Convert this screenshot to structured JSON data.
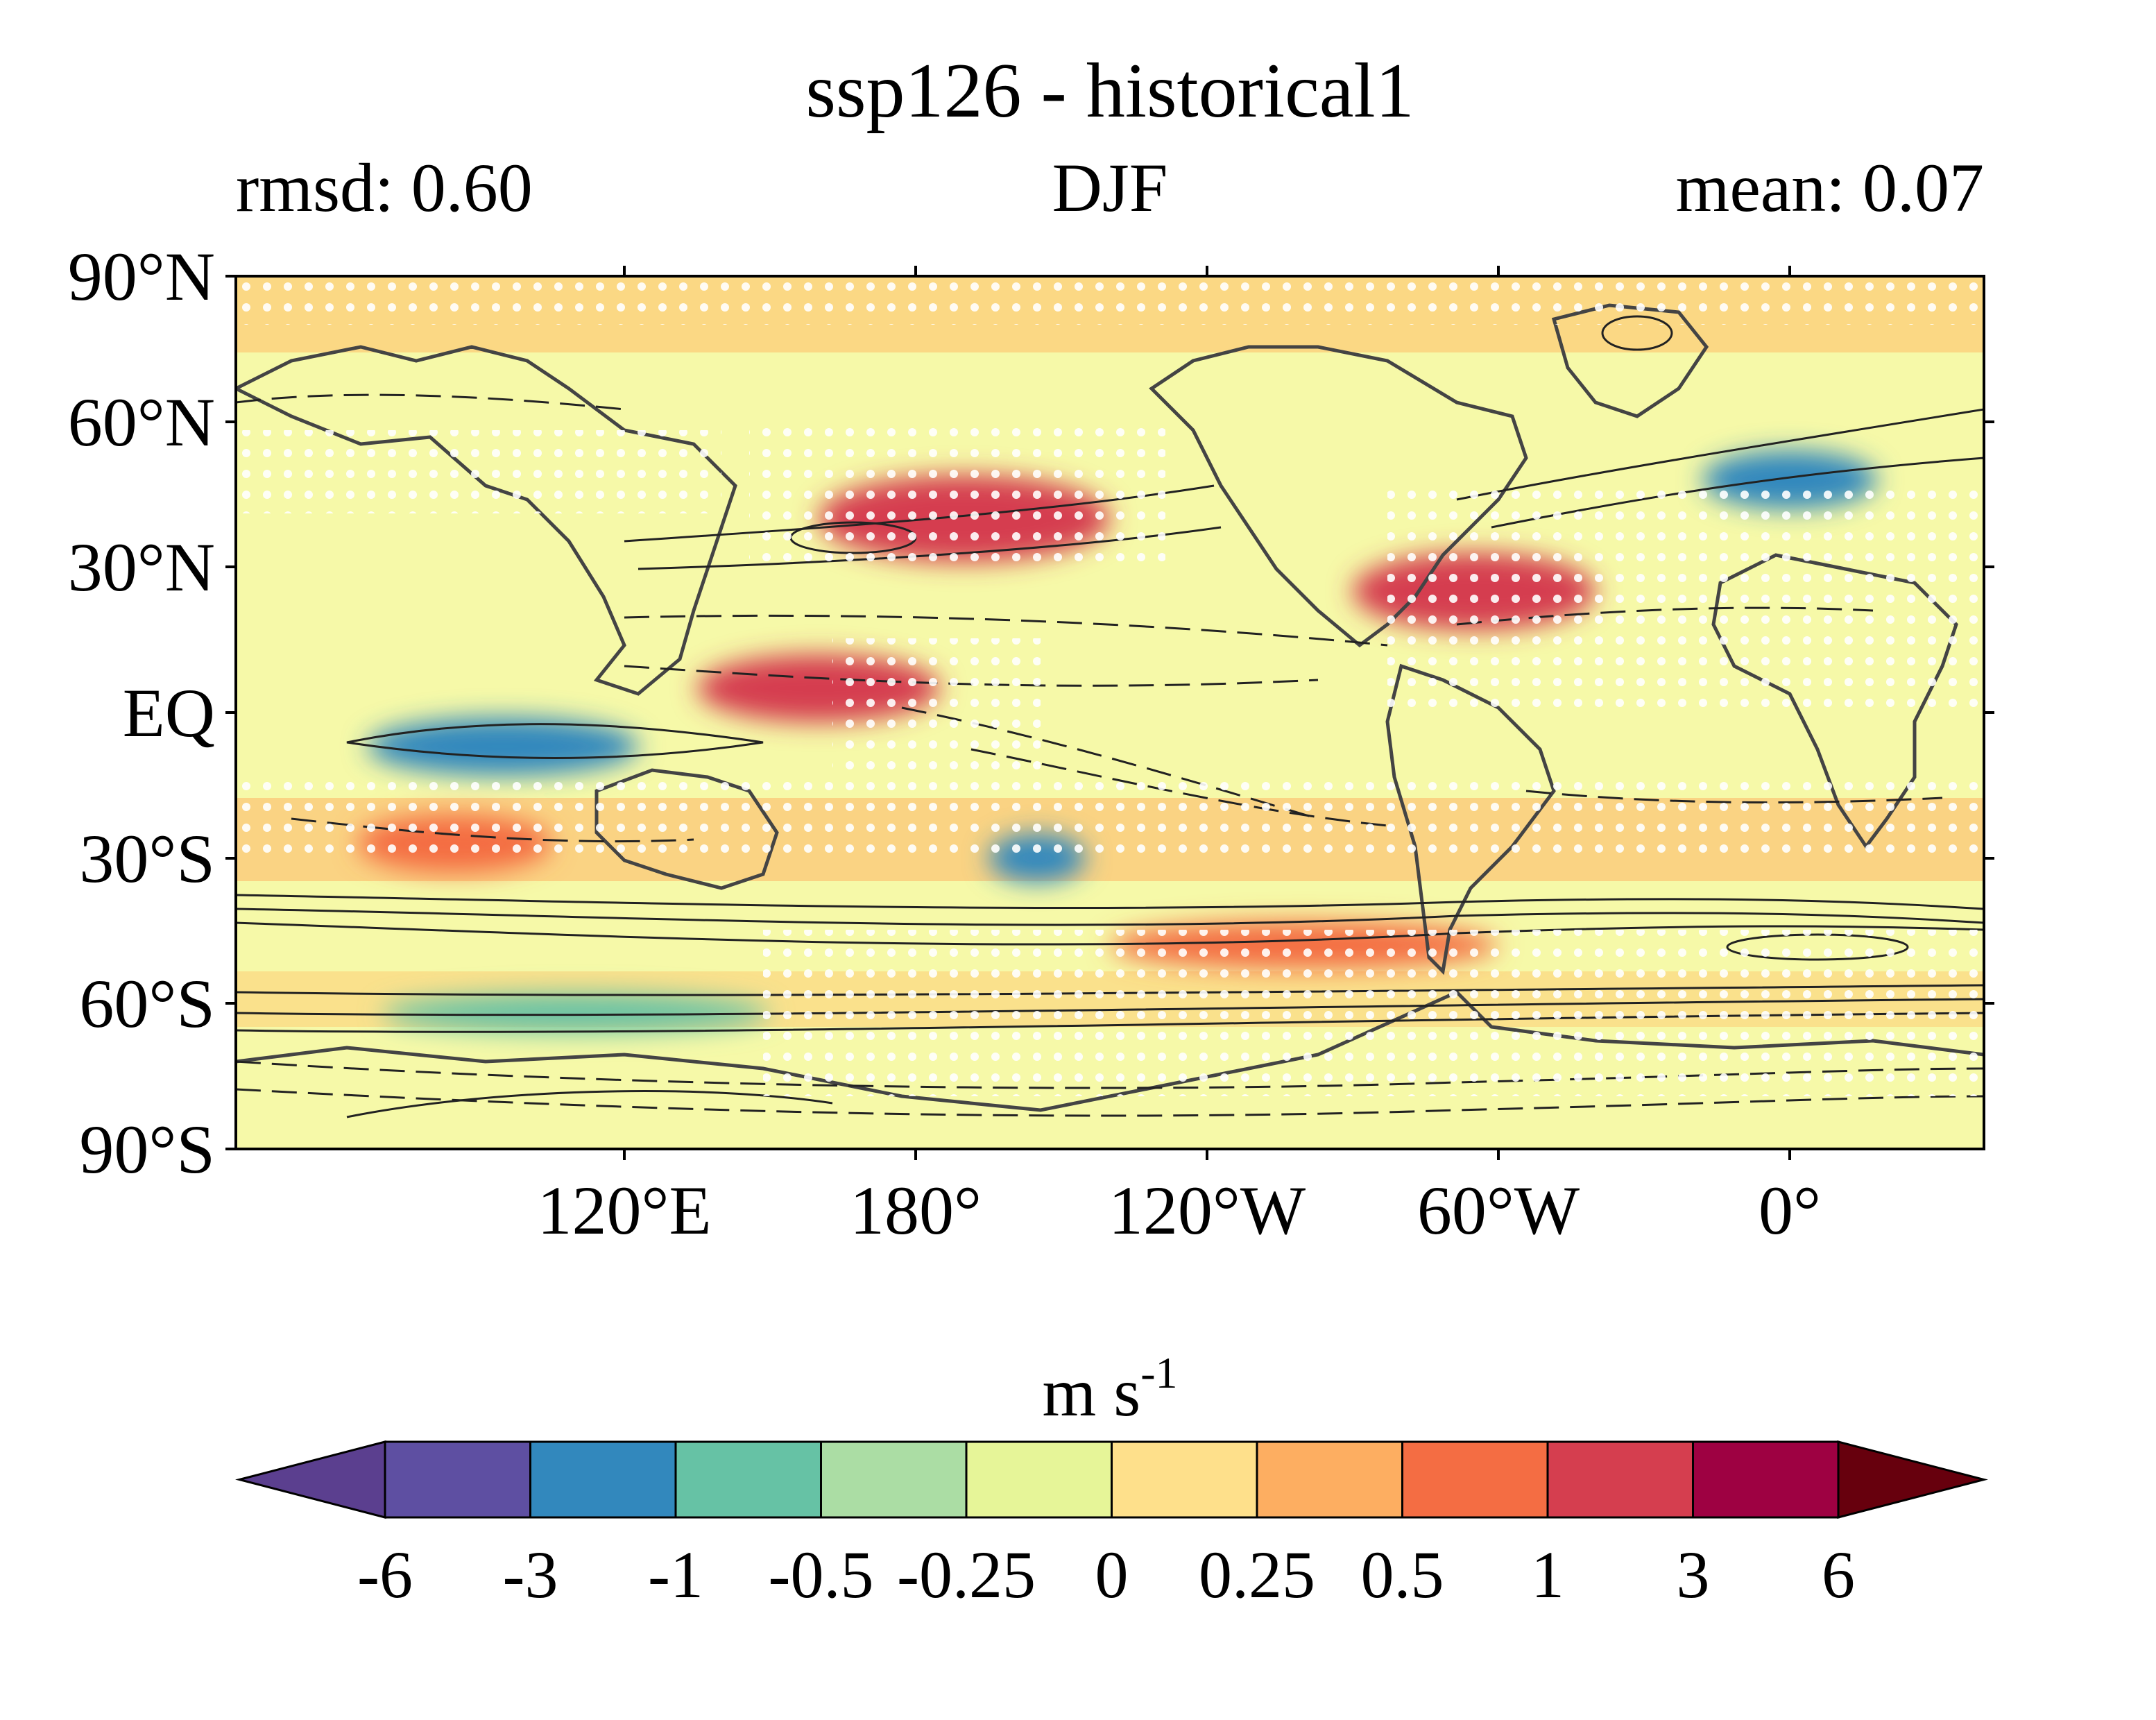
{
  "title": "ssp126 - historical1",
  "subtitle_left": "rmsd: 0.60",
  "subtitle_center": "DJF",
  "subtitle_right": "mean: 0.07",
  "lat_labels": [
    "90°N",
    "60°N",
    "30°N",
    "EQ",
    "30°S",
    "60°S",
    "90°S"
  ],
  "lon_labels": [
    "120°E",
    "180°",
    "120°W",
    "60°W",
    "0°"
  ],
  "colorbar": {
    "units_main": "m s",
    "units_exp": "-1",
    "tick_labels": [
      "-6",
      "-3",
      "-1",
      "-0.5",
      "-0.25",
      "0",
      "0.25",
      "0.5",
      "1",
      "3",
      "6"
    ],
    "colors": [
      "#5b3f8f",
      "#5e4fa2",
      "#3288bd",
      "#66c2a5",
      "#abdda4",
      "#e6f598",
      "#fee08b",
      "#fdae61",
      "#f46d43",
      "#d53e4f",
      "#9e0142",
      "#67000d"
    ]
  },
  "map": {
    "anomaly_blobs": [
      {
        "name": "pacific-jet-positive",
        "lon": 190,
        "lat": 40,
        "rx": 30,
        "ry": 9,
        "level": 1.2
      },
      {
        "name": "west-pacific-equatorial-positive",
        "lon": 160,
        "lat": 5,
        "rx": 25,
        "ry": 7,
        "level": 1.3
      },
      {
        "name": "indian-ocean-equatorial-negative",
        "lon": 95,
        "lat": -7,
        "rx": 28,
        "ry": 6,
        "level": -1.4
      },
      {
        "name": "north-atlantic-negative",
        "lon": 0,
        "lat": 48,
        "rx": 18,
        "ry": 6,
        "level": -1.2
      },
      {
        "name": "south-pacific-negative",
        "lon": 205,
        "lat": -30,
        "rx": 10,
        "ry": 5,
        "level": -1.1
      },
      {
        "name": "subtropical-atlantic-positive",
        "lon": 295,
        "lat": 25,
        "rx": 25,
        "ry": 8,
        "level": 1.1
      },
      {
        "name": "south-indian-positive",
        "lon": 85,
        "lat": -27,
        "rx": 20,
        "ry": 6,
        "level": 0.9
      },
      {
        "name": "southern-ocean-positive",
        "lon": 260,
        "lat": -48,
        "rx": 40,
        "ry": 5,
        "level": 0.7
      },
      {
        "name": "antarctic-negative",
        "lon": 110,
        "lat": -62,
        "rx": 40,
        "ry": 4,
        "level": -0.6
      }
    ]
  }
}
